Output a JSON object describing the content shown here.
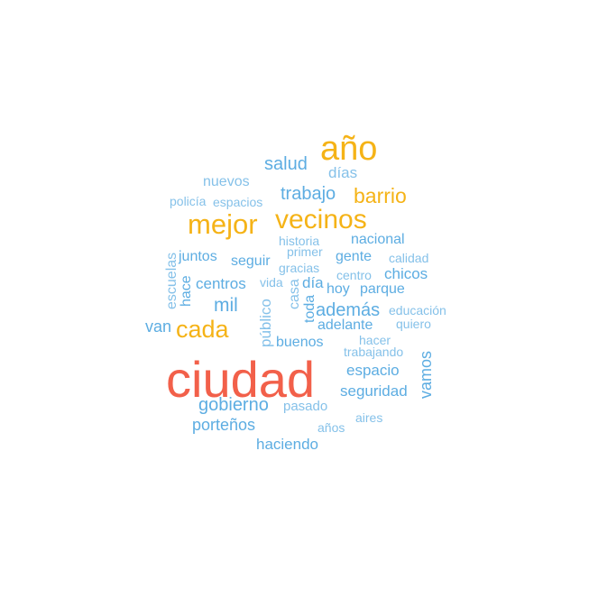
{
  "colors": {
    "top": "#F2604A",
    "high": "#F5B317",
    "mid": "#5DADE2",
    "low": "#85C1E9"
  },
  "words": [
    "ciudad",
    "año",
    "mejor",
    "vecinos",
    "cada",
    "barrio",
    "salud",
    "trabajo",
    "días",
    "nuevos",
    "policía",
    "espacios",
    "historia",
    "nacional",
    "escuelas",
    "juntos",
    "primer",
    "gente",
    "calidad",
    "seguir",
    "gracias",
    "hace",
    "centros",
    "centro",
    "chicos",
    "vida",
    "día",
    "casa",
    "hoy",
    "parque",
    "mil",
    "público",
    "toda",
    "además",
    "educación",
    "van",
    "adelante",
    "quiero",
    "buenos",
    "hacer",
    "trabajando",
    "vamos",
    "espacio",
    "seguridad",
    "gobierno",
    "pasado",
    "aires",
    "porteños",
    "años",
    "haciendo"
  ]
}
